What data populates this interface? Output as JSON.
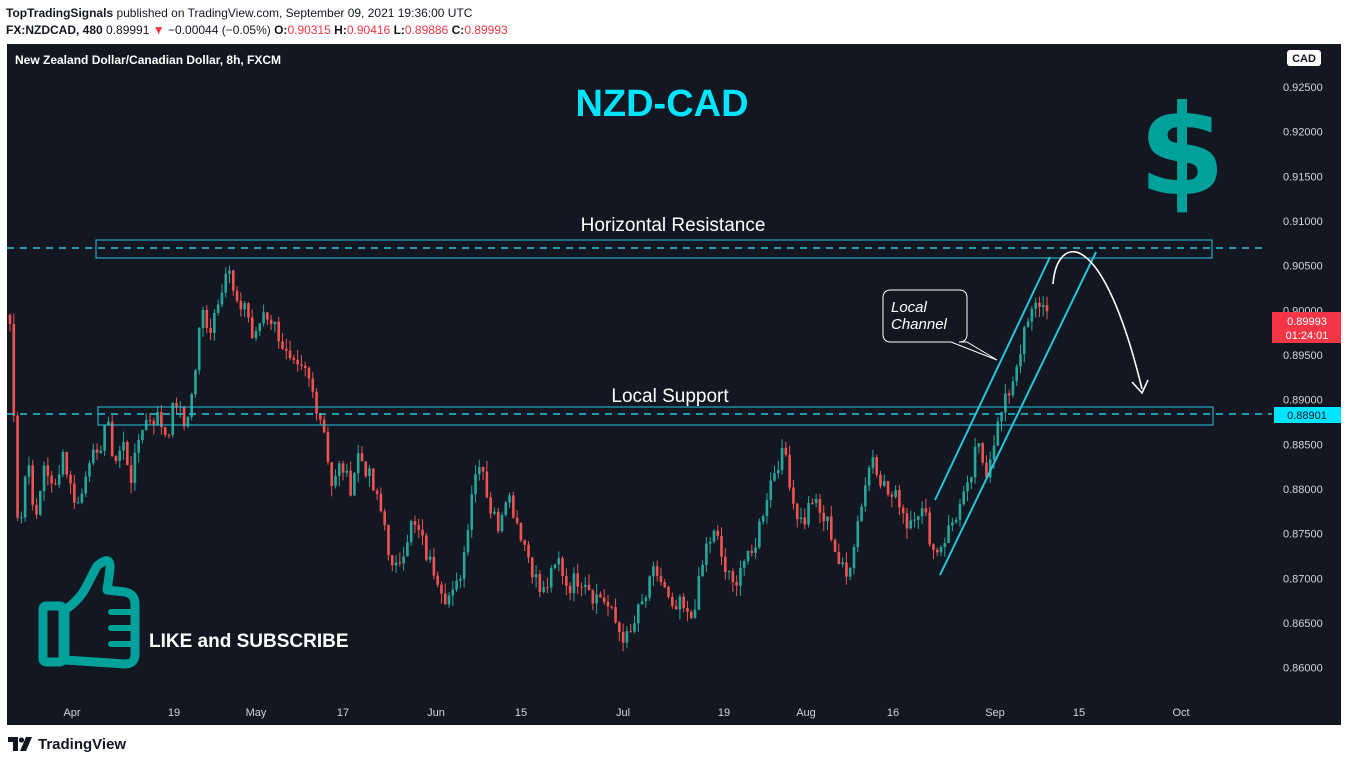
{
  "header": {
    "publisher": "TopTradingSignals",
    "published_text": " published on TradingView.com, September 09, 2021 19:36:00 UTC",
    "symbol": "FX:NZDCAD, 480",
    "last": "0.89991",
    "change_arrow": "▼",
    "change": "−0.00044 (−0.05%)",
    "o_label": "O:",
    "o_val": "0.90315",
    "h_label": "H:",
    "h_val": "0.90416",
    "l_label": "L:",
    "l_val": "0.89886",
    "c_label": "C:",
    "c_val": "0.89993"
  },
  "chart": {
    "legend": "New Zealand Dollar/Canadian Dollar, 8h, FXCM",
    "title": "NZD-CAD",
    "currency_symbol": "$",
    "currency_badge": "CAD",
    "resistance_label": "Horizontal Resistance",
    "support_label": "Local Support",
    "channel_label_line1": "Local",
    "channel_label_line2": "Channel",
    "cta": "LIKE and SUBSCRIBE",
    "price_tag": "0.89993",
    "price_countdown": "01:24:01",
    "support_tag": "0.88901",
    "icons": {
      "currency": "dollar-icon",
      "cta": "thumbs-up-icon",
      "logo": "tradingview-logo-icon"
    }
  },
  "chart_data": {
    "type": "candlestick",
    "symbol": "FX:NZDCAD",
    "interval": "8h",
    "y_ticks": [
      "0.92500",
      "0.92000",
      "0.91500",
      "0.91000",
      "0.90500",
      "0.90000",
      "0.89500",
      "0.89000",
      "0.88500",
      "0.88000",
      "0.87500",
      "0.87000",
      "0.86500",
      "0.86000"
    ],
    "ylim": [
      0.8565,
      0.9298
    ],
    "x_ticks": [
      "Apr",
      "19",
      "May",
      "17",
      "Jun",
      "15",
      "Jul",
      "19",
      "Aug",
      "16",
      "Sep",
      "15",
      "Oct"
    ],
    "resistance_level": 0.9078,
    "support_level": 0.889,
    "price_path": [
      [
        0.8985,
        0.8745,
        0.884,
        0.876,
        0.8835,
        0.879,
        0.8845,
        0.88,
        0.878,
        0.884,
        0.883,
        0.888,
        0.883,
        0.885,
        0.881,
        0.887,
        0.888
      ],
      [
        0.888,
        0.886,
        0.89,
        0.887,
        0.891,
        0.9,
        0.898,
        0.902,
        0.905,
        0.9,
        0.901,
        0.896,
        0.9,
        0.899,
        0.897,
        0.894,
        0.893
      ],
      [
        0.893,
        0.89,
        0.887,
        0.88,
        0.883,
        0.88,
        0.884,
        0.882,
        0.879,
        0.876,
        0.87,
        0.873,
        0.876,
        0.875,
        0.872,
        0.8705,
        0.868
      ],
      [
        0.868,
        0.872,
        0.88,
        0.884,
        0.878,
        0.876,
        0.88,
        0.877,
        0.874,
        0.871,
        0.868,
        0.87,
        0.872,
        0.869,
        0.87,
        0.87,
        0.868
      ],
      [
        0.868,
        0.866,
        0.864,
        0.863,
        0.866,
        0.868,
        0.871,
        0.869,
        0.866,
        0.867,
        0.865,
        0.869,
        0.874,
        0.875,
        0.871,
        0.869,
        0.872
      ],
      [
        0.872,
        0.876,
        0.88,
        0.883,
        0.884,
        0.878,
        0.876,
        0.879,
        0.877,
        0.876,
        0.872,
        0.87,
        0.875,
        0.88,
        0.884,
        0.881,
        0.879
      ],
      [
        0.879,
        0.876,
        0.878,
        0.877,
        0.873,
        0.874,
        0.876,
        0.878,
        0.88,
        0.885,
        0.882,
        0.886,
        0.889,
        0.892,
        0.896,
        0.899,
        0.901,
        0.8999
      ]
    ]
  }
}
